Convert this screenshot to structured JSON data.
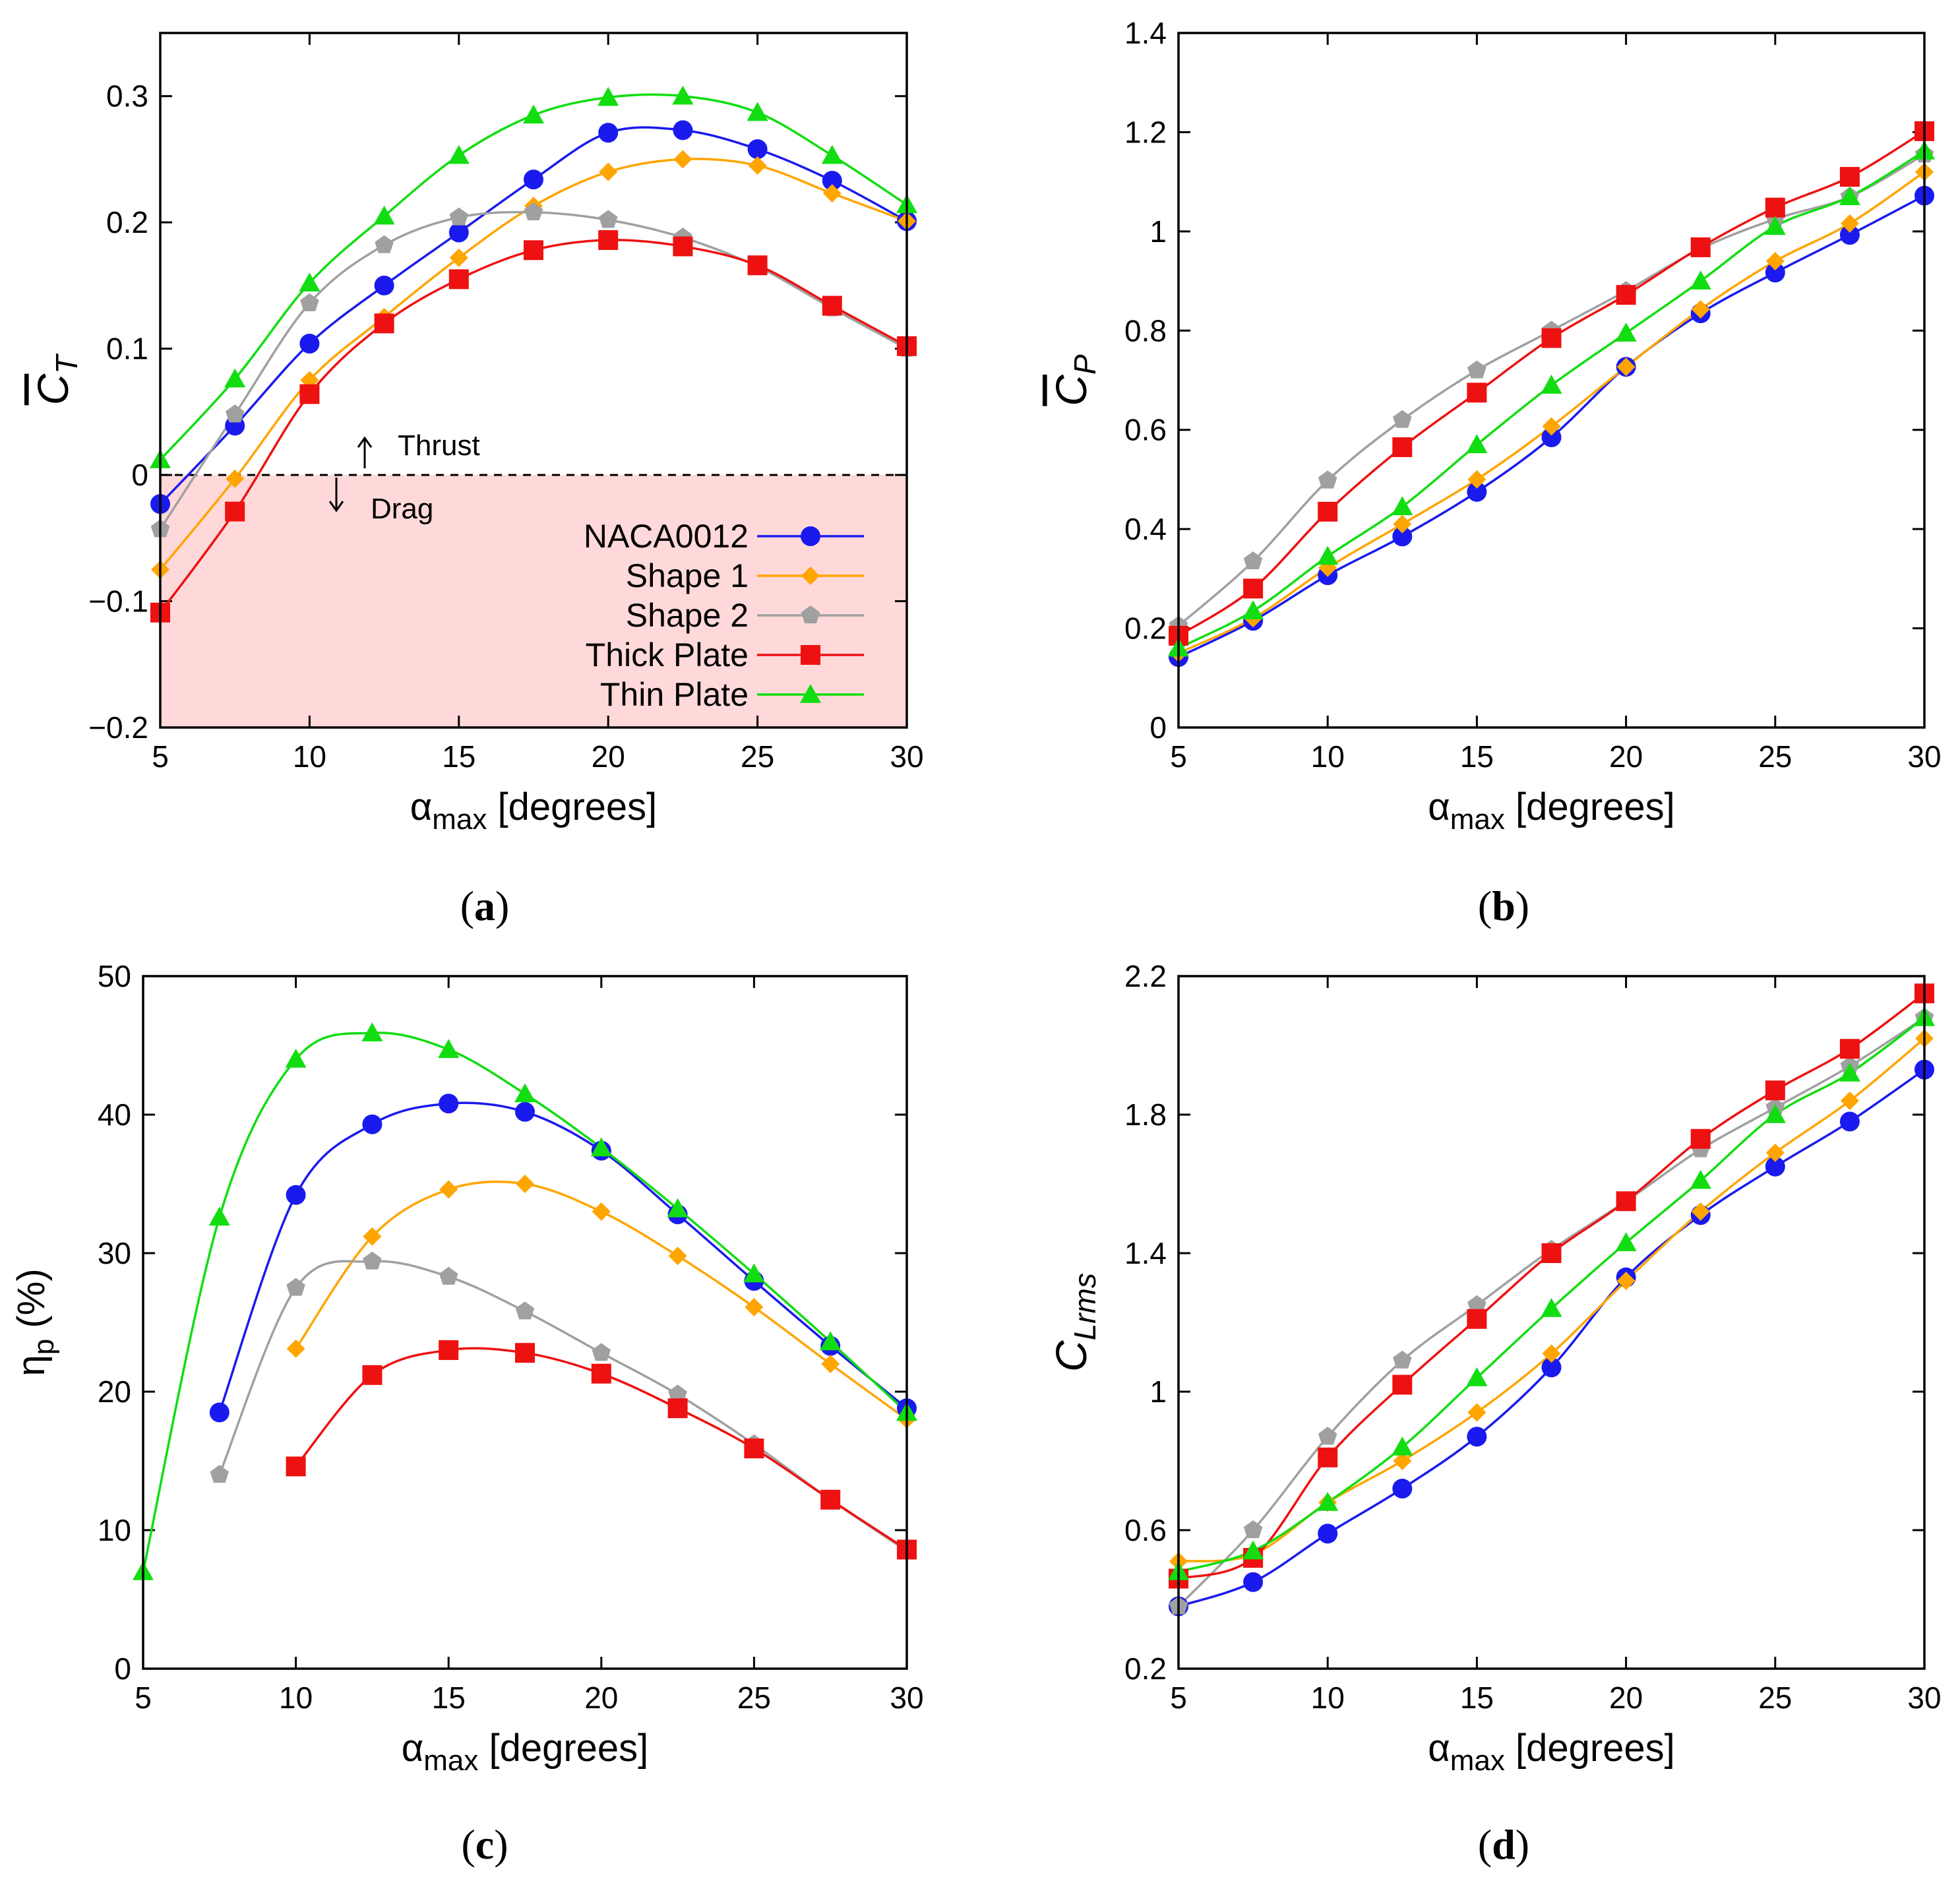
{
  "chart_data": [
    {
      "id": "a",
      "type": "line",
      "panel_label": "(a)",
      "ylabel": "C̅T",
      "xlabel": "αmax [degrees]",
      "xlim": [
        5,
        30
      ],
      "ylim": [
        -0.2,
        0.35
      ],
      "xticks": [
        5,
        10,
        15,
        20,
        25,
        30
      ],
      "yticks": [
        -0.2,
        -0.1,
        0,
        0.1,
        0.2,
        0.3
      ],
      "ytick_labels": [
        "−0.2",
        "−0.1",
        "0",
        "0.1",
        "0.2",
        "0.3"
      ],
      "drag_region": [
        -0.2,
        0
      ],
      "drag_region_color": "#ffd9d9",
      "annotations": {
        "thrust": "Thrust",
        "drag": "Drag"
      },
      "legend": {
        "placement": "inside-bottom-right"
      },
      "series": [
        {
          "name": "NACA0012",
          "color": "#1a1aee",
          "marker": "circle",
          "x": [
            5,
            7.5,
            10,
            12.5,
            15,
            17.5,
            20,
            22.5,
            25,
            27.5,
            30
          ],
          "y": [
            -0.023,
            0.039,
            0.104,
            0.15,
            0.192,
            0.234,
            0.271,
            0.273,
            0.258,
            0.233,
            0.201
          ]
        },
        {
          "name": "Shape 1",
          "color": "#ffa500",
          "marker": "diamond",
          "x": [
            5,
            7.5,
            10,
            12.5,
            15,
            17.5,
            20,
            22.5,
            25,
            27.5,
            30
          ],
          "y": [
            -0.075,
            -0.003,
            0.075,
            0.125,
            0.172,
            0.213,
            0.24,
            0.25,
            0.245,
            0.223,
            0.201
          ]
        },
        {
          "name": "Shape 2",
          "color": "#a0a0a0",
          "marker": "pentagon",
          "x": [
            5,
            7.5,
            10,
            12.5,
            15,
            17.5,
            20,
            22.5,
            25,
            27.5,
            30
          ],
          "y": [
            -0.043,
            0.048,
            0.136,
            0.182,
            0.204,
            0.208,
            0.202,
            0.188,
            0.165,
            0.132,
            0.1
          ]
        },
        {
          "name": "Thick Plate",
          "color": "#ee1111",
          "marker": "square",
          "x": [
            5,
            7.5,
            10,
            12.5,
            15,
            17.5,
            20,
            22.5,
            25,
            27.5,
            30
          ],
          "y": [
            -0.109,
            -0.029,
            0.064,
            0.12,
            0.155,
            0.178,
            0.186,
            0.181,
            0.166,
            0.134,
            0.102
          ]
        },
        {
          "name": "Thin Plate",
          "color": "#11dd11",
          "marker": "triangle",
          "x": [
            5,
            7.5,
            10,
            12.5,
            15,
            17.5,
            20,
            22.5,
            25,
            27.5,
            30
          ],
          "y": [
            0.012,
            0.076,
            0.152,
            0.205,
            0.253,
            0.285,
            0.299,
            0.3,
            0.287,
            0.253,
            0.214
          ]
        }
      ]
    },
    {
      "id": "b",
      "type": "line",
      "panel_label": "(b)",
      "ylabel": "C̅P",
      "xlabel": "αmax [degrees]",
      "xlim": [
        5,
        30
      ],
      "ylim": [
        0,
        1.4
      ],
      "xticks": [
        5,
        10,
        15,
        20,
        25,
        30
      ],
      "yticks": [
        0,
        0.2,
        0.4,
        0.6,
        0.8,
        1,
        1.2,
        1.4
      ],
      "ytick_labels": [
        "0",
        "0.2",
        "0.4",
        "0.6",
        "0.8",
        "1",
        "1.2",
        "1.4"
      ],
      "series": [
        {
          "name": "NACA0012",
          "color": "#1a1aee",
          "marker": "circle",
          "x": [
            5,
            7.5,
            10,
            12.5,
            15,
            17.5,
            20,
            22.5,
            25,
            27.5,
            30
          ],
          "y": [
            0.142,
            0.215,
            0.307,
            0.385,
            0.475,
            0.585,
            0.727,
            0.835,
            0.917,
            0.993,
            1.072
          ]
        },
        {
          "name": "Shape 1",
          "color": "#ffa500",
          "marker": "diamond",
          "x": [
            5,
            7.5,
            10,
            12.5,
            15,
            17.5,
            20,
            22.5,
            25,
            27.5,
            30
          ],
          "y": [
            0.15,
            0.22,
            0.322,
            0.41,
            0.5,
            0.607,
            0.727,
            0.843,
            0.94,
            1.016,
            1.12
          ]
        },
        {
          "name": "Shape 2",
          "color": "#a0a0a0",
          "marker": "pentagon",
          "x": [
            5,
            7.5,
            10,
            12.5,
            15,
            17.5,
            20,
            22.5,
            25,
            27.5,
            30
          ],
          "y": [
            0.205,
            0.335,
            0.498,
            0.62,
            0.72,
            0.8,
            0.88,
            0.965,
            1.025,
            1.07,
            1.155
          ]
        },
        {
          "name": "Thick Plate",
          "color": "#ee1111",
          "marker": "square",
          "x": [
            5,
            7.5,
            10,
            12.5,
            15,
            17.5,
            20,
            22.5,
            25,
            27.5,
            30
          ],
          "y": [
            0.185,
            0.28,
            0.435,
            0.565,
            0.675,
            0.785,
            0.872,
            0.968,
            1.048,
            1.11,
            1.202
          ]
        },
        {
          "name": "Thin Plate",
          "color": "#11dd11",
          "marker": "triangle",
          "x": [
            5,
            7.5,
            10,
            12.5,
            15,
            17.5,
            20,
            22.5,
            25,
            27.5,
            30
          ],
          "y": [
            0.16,
            0.235,
            0.345,
            0.445,
            0.57,
            0.69,
            0.795,
            0.9,
            1.01,
            1.07,
            1.162
          ]
        }
      ]
    },
    {
      "id": "c",
      "type": "line",
      "panel_label": "(c)",
      "ylabel": "ηp (%)",
      "xlabel": "αmax [degrees]",
      "xlim": [
        5,
        30
      ],
      "ylim": [
        0,
        50
      ],
      "xticks": [
        5,
        10,
        15,
        20,
        25,
        30
      ],
      "yticks": [
        0,
        10,
        20,
        30,
        40,
        50
      ],
      "ytick_labels": [
        "0",
        "10",
        "20",
        "30",
        "40",
        "50"
      ],
      "series": [
        {
          "name": "NACA0012",
          "color": "#1a1aee",
          "marker": "circle",
          "x": [
            7.5,
            10,
            12.5,
            15,
            17.5,
            20,
            22.5,
            25,
            27.5,
            30
          ],
          "y": [
            18.5,
            34.2,
            39.3,
            40.8,
            40.2,
            37.4,
            32.8,
            28.0,
            23.3,
            18.8
          ]
        },
        {
          "name": "Shape 1",
          "color": "#ffa500",
          "marker": "diamond",
          "x": [
            10,
            12.5,
            15,
            17.5,
            20,
            22.5,
            25,
            27.5,
            30
          ],
          "y": [
            23.1,
            31.2,
            34.6,
            35.0,
            33.0,
            29.8,
            26.1,
            22.0,
            18.0
          ]
        },
        {
          "name": "Shape 2",
          "color": "#a0a0a0",
          "marker": "pentagon",
          "x": [
            7.5,
            10,
            12.5,
            15,
            17.5,
            20,
            22.5,
            25,
            27.5,
            30
          ],
          "y": [
            14.0,
            27.5,
            29.4,
            28.3,
            25.8,
            22.8,
            19.8,
            16.2,
            12.2,
            8.5
          ]
        },
        {
          "name": "Thick Plate",
          "color": "#ee1111",
          "marker": "square",
          "x": [
            10,
            12.5,
            15,
            17.5,
            20,
            22.5,
            25,
            27.5,
            30
          ],
          "y": [
            14.6,
            21.2,
            23.0,
            22.8,
            21.3,
            18.8,
            15.9,
            12.2,
            8.6
          ]
        },
        {
          "name": "Thin Plate",
          "color": "#11dd11",
          "marker": "triangle",
          "x": [
            5,
            7.5,
            10,
            12.5,
            15,
            17.5,
            20,
            22.5,
            25,
            27.5,
            30
          ],
          "y": [
            7.0,
            32.6,
            44.0,
            45.9,
            44.7,
            41.5,
            37.6,
            33.2,
            28.5,
            23.6,
            18.5
          ]
        }
      ]
    },
    {
      "id": "d",
      "type": "line",
      "panel_label": "(d)",
      "ylabel": "CLrms",
      "xlabel": "αmax [degrees]",
      "xlim": [
        5,
        30
      ],
      "ylim": [
        0.2,
        2.2
      ],
      "xticks": [
        5,
        10,
        15,
        20,
        25,
        30
      ],
      "yticks": [
        0.2,
        0.6,
        1,
        1.4,
        1.8,
        2.2
      ],
      "ytick_labels": [
        "0.2",
        "0.6",
        "1",
        "1.4",
        "1.8",
        "2.2"
      ],
      "series": [
        {
          "name": "NACA0012",
          "color": "#1a1aee",
          "marker": "circle",
          "x": [
            5,
            7.5,
            10,
            12.5,
            15,
            17.5,
            20,
            22.5,
            25,
            27.5,
            30
          ],
          "y": [
            0.38,
            0.45,
            0.59,
            0.72,
            0.87,
            1.07,
            1.33,
            1.51,
            1.65,
            1.78,
            1.93
          ]
        },
        {
          "name": "Shape 1",
          "color": "#ffa500",
          "marker": "diamond",
          "x": [
            5,
            7.5,
            10,
            12.5,
            15,
            17.5,
            20,
            22.5,
            25,
            27.5,
            30
          ],
          "y": [
            0.51,
            0.53,
            0.68,
            0.8,
            0.94,
            1.11,
            1.32,
            1.52,
            1.69,
            1.84,
            2.02
          ]
        },
        {
          "name": "Shape 2",
          "color": "#a0a0a0",
          "marker": "pentagon",
          "x": [
            5,
            7.5,
            10,
            12.5,
            15,
            17.5,
            20,
            22.5,
            25,
            27.5,
            30
          ],
          "y": [
            0.38,
            0.6,
            0.87,
            1.09,
            1.25,
            1.41,
            1.55,
            1.7,
            1.82,
            1.94,
            2.08
          ]
        },
        {
          "name": "Thick Plate",
          "color": "#ee1111",
          "marker": "square",
          "x": [
            5,
            7.5,
            10,
            12.5,
            15,
            17.5,
            20,
            22.5,
            25,
            27.5,
            30
          ],
          "y": [
            0.46,
            0.52,
            0.81,
            1.02,
            1.21,
            1.4,
            1.55,
            1.73,
            1.87,
            1.99,
            2.15
          ]
        },
        {
          "name": "Thin Plate",
          "color": "#11dd11",
          "marker": "triangle",
          "x": [
            5,
            7.5,
            10,
            12.5,
            15,
            17.5,
            20,
            22.5,
            25,
            27.5,
            30
          ],
          "y": [
            0.48,
            0.54,
            0.68,
            0.84,
            1.04,
            1.24,
            1.43,
            1.61,
            1.8,
            1.92,
            2.08
          ]
        }
      ]
    }
  ]
}
